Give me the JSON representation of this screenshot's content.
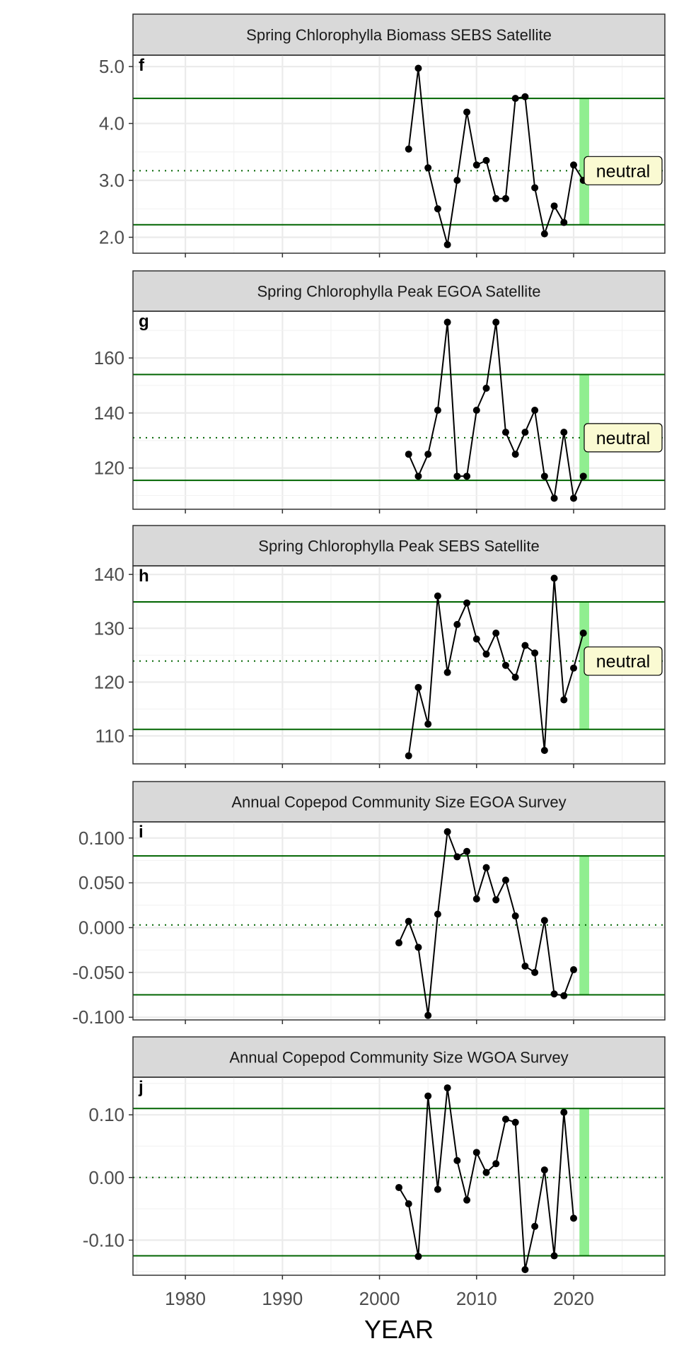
{
  "chart_data": [
    {
      "type": "line",
      "title": "Spring Chlorophylla Biomass SEBS Satellite",
      "panel_label": "f",
      "status": "neutral",
      "x": [
        2003,
        2004,
        2005,
        2006,
        2007,
        2008,
        2009,
        2010,
        2011,
        2012,
        2013,
        2014,
        2015,
        2016,
        2017,
        2018,
        2019,
        2020,
        2021
      ],
      "values": [
        3.55,
        4.97,
        3.22,
        2.5,
        1.87,
        3.0,
        4.2,
        3.27,
        3.35,
        2.68,
        2.68,
        4.44,
        4.47,
        2.87,
        2.06,
        2.55,
        2.26,
        3.27,
        3.0
      ],
      "mean": 3.17,
      "upper": 4.44,
      "lower": 2.22,
      "yticks": [
        2.0,
        3.0,
        4.0,
        5.0
      ],
      "ytick_labels": [
        "2.0",
        "3.0",
        "4.0",
        "5.0"
      ],
      "ylim": [
        1.72,
        5.2
      ]
    },
    {
      "type": "line",
      "title": "Spring Chlorophylla Peak EGOA Satellite",
      "panel_label": "g",
      "status": "neutral",
      "x": [
        2003,
        2004,
        2005,
        2006,
        2007,
        2008,
        2009,
        2010,
        2011,
        2012,
        2013,
        2014,
        2015,
        2016,
        2017,
        2018,
        2019,
        2020,
        2021
      ],
      "values": [
        125,
        117,
        125,
        141,
        173,
        117,
        117,
        141,
        149,
        173,
        133,
        125,
        133,
        141,
        117,
        109,
        133,
        109,
        117
      ],
      "mean": 131,
      "upper": 154,
      "lower": 115.5,
      "yticks": [
        120,
        140,
        160
      ],
      "ytick_labels": [
        "120",
        "140",
        "160"
      ],
      "ylim": [
        105,
        177
      ]
    },
    {
      "type": "line",
      "title": "Spring Chlorophylla Peak SEBS Satellite",
      "panel_label": "h",
      "status": "neutral",
      "x": [
        2003,
        2004,
        2005,
        2006,
        2007,
        2008,
        2009,
        2010,
        2011,
        2012,
        2013,
        2014,
        2015,
        2016,
        2017,
        2018,
        2019,
        2020,
        2021
      ],
      "values": [
        106.3,
        119,
        112.2,
        136,
        121.8,
        130.7,
        134.7,
        128,
        125.2,
        129.1,
        123.1,
        120.9,
        126.8,
        125.4,
        107.3,
        139.3,
        116.7,
        122.6,
        129.1
      ],
      "mean": 123.9,
      "upper": 134.9,
      "lower": 111.2,
      "yticks": [
        110,
        120,
        130,
        140
      ],
      "ytick_labels": [
        "110",
        "120",
        "130",
        "140"
      ],
      "ylim": [
        104.8,
        141.6
      ]
    },
    {
      "type": "line",
      "title": "Annual Copepod Community Size EGOA Survey",
      "panel_label": "i",
      "status": "",
      "x": [
        2002,
        2003,
        2004,
        2005,
        2006,
        2007,
        2008,
        2009,
        2010,
        2011,
        2012,
        2013,
        2014,
        2015,
        2016,
        2017,
        2018,
        2019,
        2020
      ],
      "values": [
        -0.017,
        0.007,
        -0.022,
        -0.098,
        0.015,
        0.107,
        0.079,
        0.085,
        0.032,
        0.067,
        0.031,
        0.053,
        0.013,
        -0.043,
        -0.05,
        0.008,
        -0.074,
        -0.076,
        -0.047
      ],
      "mean": 0.003,
      "upper": 0.08,
      "lower": -0.075,
      "yticks": [
        -0.1,
        -0.05,
        0.0,
        0.05,
        0.1
      ],
      "ytick_labels": [
        "-0.100",
        "-0.050",
        "0.000",
        "0.050",
        "0.100"
      ],
      "ylim": [
        -0.103,
        0.118
      ]
    },
    {
      "type": "line",
      "title": "Annual Copepod Community Size WGOA Survey",
      "panel_label": "j",
      "status": "",
      "x": [
        2002,
        2003,
        2004,
        2005,
        2006,
        2007,
        2008,
        2009,
        2010,
        2011,
        2012,
        2013,
        2014,
        2015,
        2016,
        2017,
        2018,
        2019,
        2020
      ],
      "values": [
        -0.016,
        -0.042,
        -0.126,
        0.13,
        -0.019,
        0.143,
        0.027,
        -0.036,
        0.04,
        0.008,
        0.022,
        0.093,
        0.088,
        -0.147,
        -0.078,
        0.012,
        -0.125,
        0.104,
        -0.065
      ],
      "mean": 0.0,
      "upper": 0.11,
      "lower": -0.125,
      "yticks": [
        -0.1,
        0.0,
        0.1
      ],
      "ytick_labels": [
        "-0.10",
        "0.00",
        "0.10"
      ],
      "ylim": [
        -0.156,
        0.16
      ]
    }
  ],
  "xaxis": {
    "label": "YEAR",
    "ticks": [
      1980,
      1990,
      2000,
      2010,
      2020
    ],
    "tick_labels": [
      "1980",
      "1990",
      "2000",
      "2010",
      "2020"
    ],
    "xlim": [
      1974.6,
      2029.4
    ]
  },
  "highlight_years": [
    2020.6,
    2021.6
  ],
  "colors": {
    "threshold_line": "#006400",
    "series": "#000000",
    "highlight": "#90ee90",
    "strip_fill": "#d9d9d9",
    "status_fill": "#fafad2"
  },
  "grid": true
}
